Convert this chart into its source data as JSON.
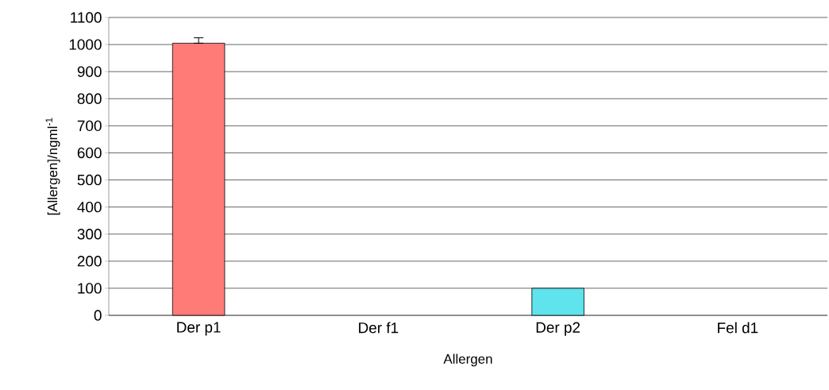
{
  "chart_data": {
    "type": "bar",
    "xlabel": "Allergen",
    "ylabel": "[Allergen]/ngml$^{-1}$",
    "categories": [
      "Der p1",
      "Der f1",
      "Der p2",
      "Fel d1"
    ],
    "values": [
      1005,
      null,
      100,
      null
    ],
    "errors": [
      [
        1005,
        1025
      ],
      null,
      null,
      null
    ],
    "colors": [
      "#ff7b78",
      "#5fe3ec",
      "#5fe3ec",
      "#5fe3ec"
    ],
    "ylim": [
      0,
      1100
    ],
    "yticks": [
      0,
      100,
      200,
      300,
      400,
      500,
      600,
      700,
      800,
      900,
      1000,
      1100
    ],
    "grid": "y"
  }
}
